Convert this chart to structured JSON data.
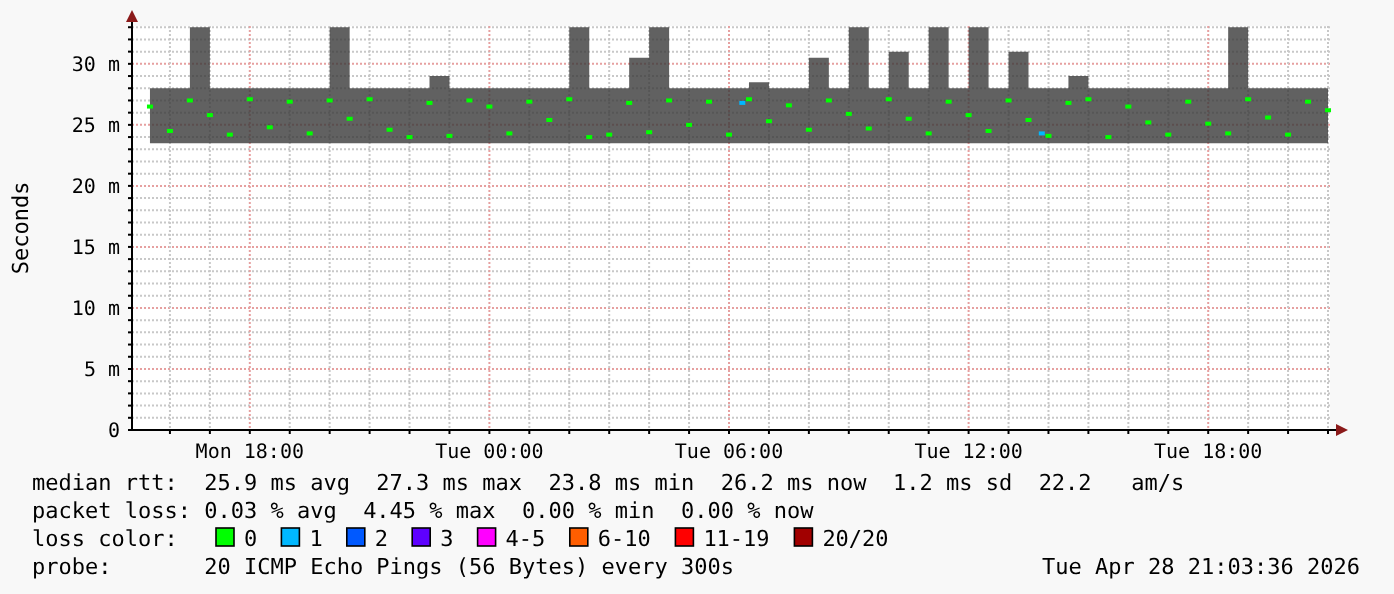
{
  "chart_data": {
    "type": "scatter",
    "ylabel": "Seconds",
    "legend_title": "loss color:",
    "legend": "bottom",
    "grid": true,
    "marker": "square",
    "xlim": [
      "2026-04-27T15:03",
      "2026-04-28T21:03"
    ],
    "xticks": [
      {
        "value": "2026-04-27T16:00",
        "label": null
      },
      {
        "value": "2026-04-27T17:00",
        "label": null
      },
      {
        "value": "2026-04-27T18:00",
        "label": "Mon 18:00"
      },
      {
        "value": "2026-04-27T19:00",
        "label": null
      },
      {
        "value": "2026-04-27T20:00",
        "label": null
      },
      {
        "value": "2026-04-27T21:00",
        "label": null
      },
      {
        "value": "2026-04-27T22:00",
        "label": null
      },
      {
        "value": "2026-04-27T23:00",
        "label": null
      },
      {
        "value": "2026-04-28T00:00",
        "label": "Tue 00:00"
      },
      {
        "value": "2026-04-28T01:00",
        "label": null
      },
      {
        "value": "2026-04-28T02:00",
        "label": null
      },
      {
        "value": "2026-04-28T03:00",
        "label": null
      },
      {
        "value": "2026-04-28T04:00",
        "label": null
      },
      {
        "value": "2026-04-28T05:00",
        "label": null
      },
      {
        "value": "2026-04-28T06:00",
        "label": "Tue 06:00"
      },
      {
        "value": "2026-04-28T07:00",
        "label": null
      },
      {
        "value": "2026-04-28T08:00",
        "label": null
      },
      {
        "value": "2026-04-28T09:00",
        "label": null
      },
      {
        "value": "2026-04-28T10:00",
        "label": null
      },
      {
        "value": "2026-04-28T11:00",
        "label": null
      },
      {
        "value": "2026-04-28T12:00",
        "label": "Tue 12:00"
      },
      {
        "value": "2026-04-28T13:00",
        "label": null
      },
      {
        "value": "2026-04-28T14:00",
        "label": null
      },
      {
        "value": "2026-04-28T15:00",
        "label": null
      },
      {
        "value": "2026-04-28T16:00",
        "label": null
      },
      {
        "value": "2026-04-28T17:00",
        "label": null
      },
      {
        "value": "2026-04-28T18:00",
        "label": "Tue 18:00"
      },
      {
        "value": "2026-04-28T19:00",
        "label": null
      },
      {
        "value": "2026-04-28T20:00",
        "label": null
      },
      {
        "value": "2026-04-28T21:00",
        "label": null
      }
    ],
    "ylim": [
      0,
      33.1
    ],
    "yticks": [
      0,
      {
        "value": 1,
        "label": null
      },
      {
        "value": 2,
        "label": null
      },
      {
        "value": 3,
        "label": null
      },
      {
        "value": 4,
        "label": null
      },
      {
        "value": 5,
        "label": "5 m"
      },
      {
        "value": 6,
        "label": null
      },
      {
        "value": 7,
        "label": null
      },
      {
        "value": 8,
        "label": null
      },
      {
        "value": 9,
        "label": null
      },
      {
        "value": 10,
        "label": "10 m"
      },
      {
        "value": 11,
        "label": null
      },
      {
        "value": 12,
        "label": null
      },
      {
        "value": 13,
        "label": null
      },
      {
        "value": 14,
        "label": null
      },
      {
        "value": 15,
        "label": "15 m"
      },
      {
        "value": 16,
        "label": null
      },
      {
        "value": 17,
        "label": null
      },
      {
        "value": 18,
        "label": null
      },
      {
        "value": 19,
        "label": null
      },
      {
        "value": 20,
        "label": "20 m"
      },
      {
        "value": 21,
        "label": null
      },
      {
        "value": 22,
        "label": null
      },
      {
        "value": 23,
        "label": null
      },
      {
        "value": 24,
        "label": null
      },
      {
        "value": 25,
        "label": "25 m"
      },
      {
        "value": 26,
        "label": null
      },
      {
        "value": 27,
        "label": null
      },
      {
        "value": 28,
        "label": null
      },
      {
        "value": 29,
        "label": null
      },
      {
        "value": 30,
        "label": "30 m"
      },
      {
        "value": 31,
        "label": null
      },
      {
        "value": 32,
        "label": null
      },
      {
        "value": 33,
        "label": null
      }
    ],
    "x": [
      "2026-04-27T15:30",
      "2026-04-27T16:00",
      "2026-04-27T16:30",
      "2026-04-27T17:00",
      "2026-04-27T17:30",
      "2026-04-27T18:00",
      "2026-04-27T18:30",
      "2026-04-27T19:00",
      "2026-04-27T19:30",
      "2026-04-27T20:00",
      "2026-04-27T20:30",
      "2026-04-27T21:00",
      "2026-04-27T21:30",
      "2026-04-27T22:00",
      "2026-04-27T22:30",
      "2026-04-27T23:00",
      "2026-04-27T23:30",
      "2026-04-28T00:00",
      "2026-04-28T00:30",
      "2026-04-28T01:00",
      "2026-04-28T01:30",
      "2026-04-28T02:00",
      "2026-04-28T02:30",
      "2026-04-28T03:00",
      "2026-04-28T03:30",
      "2026-04-28T04:00",
      "2026-04-28T04:30",
      "2026-04-28T05:00",
      "2026-04-28T05:30",
      "2026-04-28T06:00",
      "2026-04-28T06:30",
      "2026-04-28T07:00",
      "2026-04-28T07:30",
      "2026-04-28T08:00",
      "2026-04-28T08:30",
      "2026-04-28T09:00",
      "2026-04-28T09:30",
      "2026-04-28T10:00",
      "2026-04-28T10:30",
      "2026-04-28T11:00",
      "2026-04-28T11:30",
      "2026-04-28T12:00",
      "2026-04-28T12:30",
      "2026-04-28T13:00",
      "2026-04-28T13:30",
      "2026-04-28T14:00",
      "2026-04-28T14:30",
      "2026-04-28T15:00",
      "2026-04-28T15:30",
      "2026-04-28T16:00",
      "2026-04-28T16:30",
      "2026-04-28T17:00",
      "2026-04-28T17:30",
      "2026-04-28T18:00",
      "2026-04-28T18:30",
      "2026-04-28T19:00",
      "2026-04-28T19:30",
      "2026-04-28T20:00",
      "2026-04-28T20:30",
      "2026-04-28T21:00"
    ],
    "series": [
      {
        "name": "0",
        "color": "#00ff00",
        "values": [
          26.5,
          24.5,
          27,
          25.8,
          24.2,
          27.1,
          24.8,
          26.9,
          24.3,
          27,
          25.5,
          27.1,
          24.6,
          24,
          26.8,
          24.1,
          27,
          26.5,
          24.3,
          26.9,
          25.4,
          27.1,
          24,
          24.2,
          26.8,
          24.4,
          27,
          25,
          26.9,
          24.2,
          27.1,
          25.3,
          26.6,
          24.6,
          27,
          25.9,
          24.7,
          27.1,
          25.5,
          24.3,
          26.9,
          25.8,
          24.5,
          27,
          25.4,
          24.1,
          26.8,
          27.1,
          24,
          26.5,
          25.2,
          24.2,
          26.9,
          25.1,
          24.3,
          27.1,
          25.6,
          24.2,
          26.9,
          26.2
        ],
        "lower": [
          23.5,
          23.5,
          23.5,
          23.5,
          23.5,
          23.5,
          23.5,
          23.5,
          23.5,
          23.5,
          23.5,
          23.5,
          23.5,
          23.5,
          23.5,
          23.5,
          23.5,
          23.5,
          23.5,
          23.5,
          23.5,
          23.5,
          23.5,
          23.5,
          23.5,
          23.5,
          23.5,
          23.5,
          23.5,
          23.5,
          23.5,
          23.5,
          23.5,
          23.5,
          23.5,
          23.5,
          23.5,
          23.5,
          23.5,
          23.5,
          23.5,
          23.5,
          23.5,
          23.5,
          23.5,
          23.5,
          23.5,
          23.5,
          23.5,
          23.5,
          23.5,
          23.5,
          23.5,
          23.5,
          23.5,
          23.5,
          23.5,
          23.5,
          23.5,
          23.5
        ],
        "upper": [
          28,
          28,
          33,
          28,
          28,
          28,
          28,
          28,
          28,
          33,
          28,
          28,
          28,
          28,
          29,
          28,
          28,
          28,
          28,
          28,
          28,
          33,
          28,
          28,
          30.5,
          33,
          28,
          28,
          28,
          28,
          28.5,
          28,
          28,
          30.5,
          28,
          33,
          28,
          31,
          28,
          33,
          28,
          33,
          28,
          31,
          28,
          28,
          29,
          28,
          28,
          28,
          28,
          28,
          28,
          28,
          33,
          28,
          28,
          28,
          28,
          33
        ]
      },
      {
        "name": "1",
        "color": "#00b8ff",
        "x": [
          "2026-04-28T06:20",
          "2026-04-28T13:50"
        ],
        "values": [
          26.8,
          24.3
        ]
      },
      {
        "name": "2",
        "color": "#0059ff",
        "values": [
          null,
          null,
          null,
          null,
          null,
          null,
          null,
          null,
          null,
          null,
          null,
          null,
          null,
          null,
          null,
          null,
          null,
          null,
          null,
          null,
          null,
          null,
          null,
          null,
          null,
          null,
          null,
          null,
          null,
          null,
          null,
          null,
          null,
          null,
          null,
          null,
          null,
          null,
          null,
          null,
          null,
          null,
          null,
          null,
          null,
          null,
          null,
          null,
          null,
          null,
          null,
          null,
          null,
          null,
          null,
          null,
          null,
          null,
          null,
          null
        ]
      },
      {
        "name": "3",
        "color": "#5e00ff",
        "values": [
          null,
          null,
          null,
          null,
          null,
          null,
          null,
          null,
          null,
          null,
          null,
          null,
          null,
          null,
          null,
          null,
          null,
          null,
          null,
          null,
          null,
          null,
          null,
          null,
          null,
          null,
          null,
          null,
          null,
          null,
          null,
          null,
          null,
          null,
          null,
          null,
          null,
          null,
          null,
          null,
          null,
          null,
          null,
          null,
          null,
          null,
          null,
          null,
          null,
          null,
          null,
          null,
          null,
          null,
          null,
          null,
          null,
          null,
          null,
          null
        ]
      },
      {
        "name": "4-5",
        "color": "#ff00ff",
        "values": [
          null,
          null,
          null,
          null,
          null,
          null,
          null,
          null,
          null,
          null,
          null,
          null,
          null,
          null,
          null,
          null,
          null,
          null,
          null,
          null,
          null,
          null,
          null,
          null,
          null,
          null,
          null,
          null,
          null,
          null,
          null,
          null,
          null,
          null,
          null,
          null,
          null,
          null,
          null,
          null,
          null,
          null,
          null,
          null,
          null,
          null,
          null,
          null,
          null,
          null,
          null,
          null,
          null,
          null,
          null,
          null,
          null,
          null,
          null,
          null
        ]
      },
      {
        "name": "6-10",
        "color": "#ff5e00",
        "values": [
          null,
          null,
          null,
          null,
          null,
          null,
          null,
          null,
          null,
          null,
          null,
          null,
          null,
          null,
          null,
          null,
          null,
          null,
          null,
          null,
          null,
          null,
          null,
          null,
          null,
          null,
          null,
          null,
          null,
          null,
          null,
          null,
          null,
          null,
          null,
          null,
          null,
          null,
          null,
          null,
          null,
          null,
          null,
          null,
          null,
          null,
          null,
          null,
          null,
          null,
          null,
          null,
          null,
          null,
          null,
          null,
          null,
          null,
          null,
          null
        ]
      },
      {
        "name": "11-19",
        "color": "#ff0000",
        "values": [
          null,
          null,
          null,
          null,
          null,
          null,
          null,
          null,
          null,
          null,
          null,
          null,
          null,
          null,
          null,
          null,
          null,
          null,
          null,
          null,
          null,
          null,
          null,
          null,
          null,
          null,
          null,
          null,
          null,
          null,
          null,
          null,
          null,
          null,
          null,
          null,
          null,
          null,
          null,
          null,
          null,
          null,
          null,
          null,
          null,
          null,
          null,
          null,
          null,
          null,
          null,
          null,
          null,
          null,
          null,
          null,
          null,
          null,
          null,
          null
        ]
      },
      {
        "name": "20/20",
        "color": "#a10000",
        "values": [
          null,
          null,
          null,
          null,
          null,
          null,
          null,
          null,
          null,
          null,
          null,
          null,
          null,
          null,
          null,
          null,
          null,
          null,
          null,
          null,
          null,
          null,
          null,
          null,
          null,
          null,
          null,
          null,
          null,
          null,
          null,
          null,
          null,
          null,
          null,
          null,
          null,
          null,
          null,
          null,
          null,
          null,
          null,
          null,
          null,
          null,
          null,
          null,
          null,
          null,
          null,
          null,
          null,
          null,
          null,
          null,
          null,
          null,
          null,
          null
        ]
      }
    ],
    "annotations": [
      "median rtt:  25.9 ms avg  27.3 ms max  23.8 ms min  26.2 ms now  1.2 ms sd  22.2   am/s",
      "packet loss: 0.03 % avg  4.45 % max  0.00 % min  0.00 % now",
      "probe:       20 ICMP Echo Pings (56 Bytes) every 300s",
      "Tue Apr 28 21:03:36 2026"
    ]
  }
}
